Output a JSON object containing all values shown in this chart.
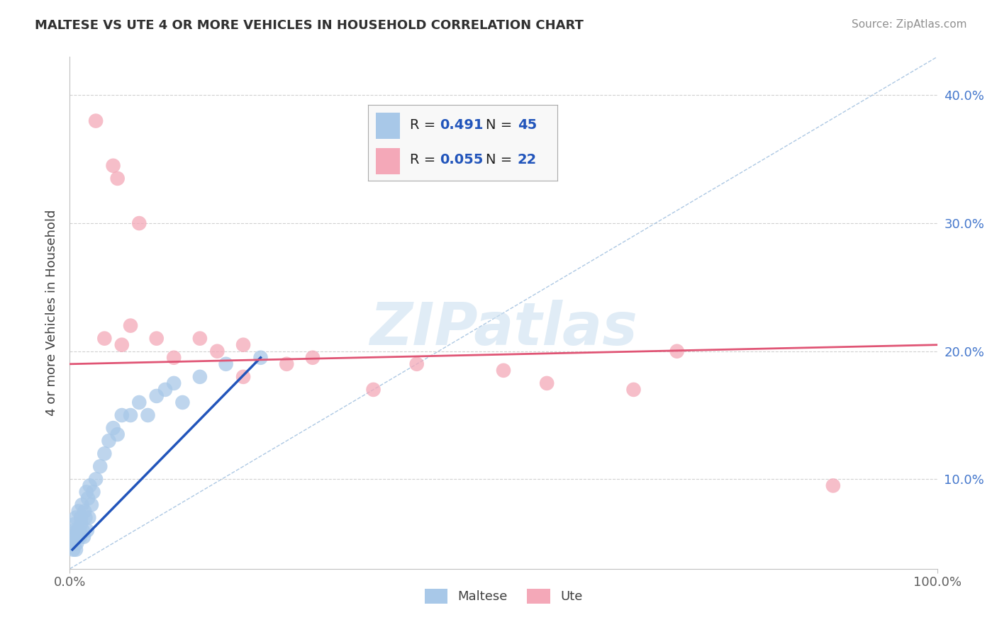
{
  "title": "MALTESE VS UTE 4 OR MORE VEHICLES IN HOUSEHOLD CORRELATION CHART",
  "source_text": "Source: ZipAtlas.com",
  "ylabel": "4 or more Vehicles in Household",
  "xlim": [
    0,
    100
  ],
  "ylim": [
    3,
    43
  ],
  "ytick_values": [
    10,
    20,
    30,
    40
  ],
  "maltese_R": 0.491,
  "maltese_N": 45,
  "ute_R": 0.055,
  "ute_N": 22,
  "maltese_color": "#a8c8e8",
  "ute_color": "#f4a8b8",
  "maltese_line_color": "#2255bb",
  "ute_line_color": "#e05575",
  "diag_line_color": "#99bbdd",
  "watermark_color": "#cce0f0",
  "background_color": "#ffffff",
  "grid_color": "#cccccc",
  "maltese_x": [
    0.3,
    0.4,
    0.5,
    0.5,
    0.6,
    0.6,
    0.7,
    0.7,
    0.8,
    0.9,
    1.0,
    1.0,
    1.1,
    1.2,
    1.3,
    1.3,
    1.4,
    1.5,
    1.6,
    1.7,
    1.8,
    1.9,
    2.0,
    2.1,
    2.2,
    2.3,
    2.5,
    2.7,
    3.0,
    3.5,
    4.0,
    4.5,
    5.0,
    5.5,
    6.0,
    7.0,
    8.0,
    9.0,
    10.0,
    11.0,
    12.0,
    13.0,
    15.0,
    18.0,
    22.0
  ],
  "maltese_y": [
    5.5,
    4.5,
    6.0,
    5.0,
    5.5,
    6.5,
    4.5,
    7.0,
    5.0,
    6.0,
    5.5,
    7.5,
    6.0,
    5.5,
    7.0,
    6.5,
    8.0,
    6.0,
    5.5,
    7.5,
    7.0,
    9.0,
    6.0,
    8.5,
    7.0,
    9.5,
    8.0,
    9.0,
    10.0,
    11.0,
    12.0,
    13.0,
    14.0,
    13.5,
    15.0,
    15.0,
    16.0,
    15.0,
    16.5,
    17.0,
    17.5,
    16.0,
    18.0,
    19.0,
    19.5
  ],
  "ute_x": [
    3.0,
    5.0,
    5.5,
    8.0,
    4.0,
    6.0,
    7.0,
    10.0,
    12.0,
    15.0,
    17.0,
    20.0,
    25.0,
    28.0,
    35.0,
    40.0,
    50.0,
    55.0,
    65.0,
    70.0,
    88.0,
    20.0
  ],
  "ute_y": [
    38.0,
    34.5,
    33.5,
    30.0,
    21.0,
    20.5,
    22.0,
    21.0,
    19.5,
    21.0,
    20.0,
    20.5,
    19.0,
    19.5,
    17.0,
    19.0,
    18.5,
    17.5,
    17.0,
    20.0,
    9.5,
    18.0
  ],
  "ute_line_y0": 19.0,
  "ute_line_y100": 20.5,
  "maltese_line_x0": 0.3,
  "maltese_line_y0": 4.5,
  "maltese_line_x1": 22.0,
  "maltese_line_y1": 19.5
}
